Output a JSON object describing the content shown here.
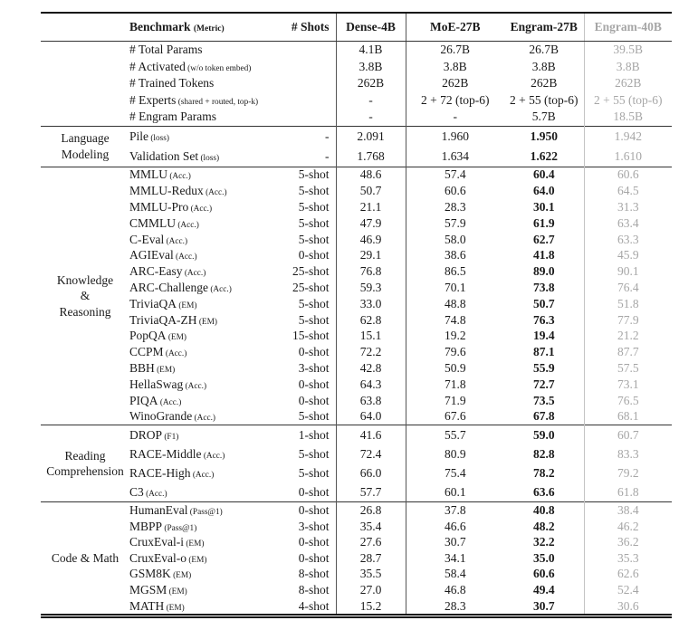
{
  "colors": {
    "text": "#1a1a1a",
    "muted_column": "#a6a6a6",
    "rule_heavy": "#111111",
    "rule_section": "#333333",
    "divider_dark": "#555555",
    "divider_gray": "#c4c4c4"
  },
  "header": {
    "benchmark_label": "Benchmark",
    "metric_note": "(Metric)",
    "shots_label": "# Shots",
    "models": [
      "Dense-4B",
      "MoE-27B",
      "Engram-27B",
      "Engram-40B"
    ]
  },
  "sections": [
    {
      "group_lines": [],
      "engram27_bold": false,
      "rows": [
        {
          "name": "# Total Params",
          "metric": "",
          "shots": "",
          "values": [
            "4.1B",
            "26.7B",
            "26.7B",
            "39.5B"
          ]
        },
        {
          "name": "# Activated",
          "metric": "(w/o token embed)",
          "shots": "",
          "values": [
            "3.8B",
            "3.8B",
            "3.8B",
            "3.8B"
          ]
        },
        {
          "name": "# Trained Tokens",
          "metric": "",
          "shots": "",
          "values": [
            "262B",
            "262B",
            "262B",
            "262B"
          ]
        },
        {
          "name": "# Experts",
          "metric": "(shared + routed, top-k)",
          "shots": "",
          "values": [
            "-",
            "2 + 72 (top-6)",
            "2 + 55 (top-6)",
            "2 + 55 (top-6)"
          ]
        },
        {
          "name": "# Engram Params",
          "metric": "",
          "shots": "",
          "values": [
            "-",
            "-",
            "5.7B",
            "18.5B"
          ]
        }
      ]
    },
    {
      "group_lines": [
        "Language",
        "Modeling"
      ],
      "engram27_bold": true,
      "rows": [
        {
          "name": "Pile",
          "metric": "(loss)",
          "shots": "-",
          "values": [
            "2.091",
            "1.960",
            "1.950",
            "1.942"
          ]
        },
        {
          "name": "Validation Set",
          "metric": "(loss)",
          "shots": "-",
          "values": [
            "1.768",
            "1.634",
            "1.622",
            "1.610"
          ]
        }
      ]
    },
    {
      "group_lines": [
        "Knowledge",
        "&",
        "Reasoning"
      ],
      "engram27_bold": true,
      "rows": [
        {
          "name": "MMLU",
          "metric": "(Acc.)",
          "shots": "5-shot",
          "values": [
            "48.6",
            "57.4",
            "60.4",
            "60.6"
          ]
        },
        {
          "name": "MMLU-Redux",
          "metric": "(Acc.)",
          "shots": "5-shot",
          "values": [
            "50.7",
            "60.6",
            "64.0",
            "64.5"
          ]
        },
        {
          "name": "MMLU-Pro",
          "metric": "(Acc.)",
          "shots": "5-shot",
          "values": [
            "21.1",
            "28.3",
            "30.1",
            "31.3"
          ]
        },
        {
          "name": "CMMLU",
          "metric": "(Acc.)",
          "shots": "5-shot",
          "values": [
            "47.9",
            "57.9",
            "61.9",
            "63.4"
          ]
        },
        {
          "name": "C-Eval",
          "metric": "(Acc.)",
          "shots": "5-shot",
          "values": [
            "46.9",
            "58.0",
            "62.7",
            "63.3"
          ]
        },
        {
          "name": "AGIEval",
          "metric": "(Acc.)",
          "shots": "0-shot",
          "values": [
            "29.1",
            "38.6",
            "41.8",
            "45.9"
          ]
        },
        {
          "name": "ARC-Easy",
          "metric": "(Acc.)",
          "shots": "25-shot",
          "values": [
            "76.8",
            "86.5",
            "89.0",
            "90.1"
          ]
        },
        {
          "name": "ARC-Challenge",
          "metric": "(Acc.)",
          "shots": "25-shot",
          "values": [
            "59.3",
            "70.1",
            "73.8",
            "76.4"
          ]
        },
        {
          "name": "TriviaQA",
          "metric": "(EM)",
          "shots": "5-shot",
          "values": [
            "33.0",
            "48.8",
            "50.7",
            "51.8"
          ]
        },
        {
          "name": "TriviaQA-ZH",
          "metric": "(EM)",
          "shots": "5-shot",
          "values": [
            "62.8",
            "74.8",
            "76.3",
            "77.9"
          ]
        },
        {
          "name": "PopQA",
          "metric": "(EM)",
          "shots": "15-shot",
          "values": [
            "15.1",
            "19.2",
            "19.4",
            "21.2"
          ]
        },
        {
          "name": "CCPM",
          "metric": "(Acc.)",
          "shots": "0-shot",
          "values": [
            "72.2",
            "79.6",
            "87.1",
            "87.7"
          ]
        },
        {
          "name": "BBH",
          "metric": "(EM)",
          "shots": "3-shot",
          "values": [
            "42.8",
            "50.9",
            "55.9",
            "57.5"
          ]
        },
        {
          "name": "HellaSwag",
          "metric": "(Acc.)",
          "shots": "0-shot",
          "values": [
            "64.3",
            "71.8",
            "72.7",
            "73.1"
          ]
        },
        {
          "name": "PIQA",
          "metric": "(Acc.)",
          "shots": "0-shot",
          "values": [
            "63.8",
            "71.9",
            "73.5",
            "76.5"
          ]
        },
        {
          "name": "WinoGrande",
          "metric": "(Acc.)",
          "shots": "5-shot",
          "values": [
            "64.0",
            "67.6",
            "67.8",
            "68.1"
          ]
        }
      ]
    },
    {
      "group_lines": [
        "Reading",
        "Comprehension"
      ],
      "engram27_bold": true,
      "rows": [
        {
          "name": "DROP",
          "metric": "(F1)",
          "shots": "1-shot",
          "values": [
            "41.6",
            "55.7",
            "59.0",
            "60.7"
          ]
        },
        {
          "name": "RACE-Middle",
          "metric": "(Acc.)",
          "shots": "5-shot",
          "values": [
            "72.4",
            "80.9",
            "82.8",
            "83.3"
          ]
        },
        {
          "name": "RACE-High",
          "metric": "(Acc.)",
          "shots": "5-shot",
          "values": [
            "66.0",
            "75.4",
            "78.2",
            "79.2"
          ]
        },
        {
          "name": "C3",
          "metric": "(Acc.)",
          "shots": "0-shot",
          "values": [
            "57.7",
            "60.1",
            "63.6",
            "61.8"
          ]
        }
      ]
    },
    {
      "group_lines": [
        "Code & Math"
      ],
      "engram27_bold": true,
      "rows": [
        {
          "name": "HumanEval",
          "metric": "(Pass@1)",
          "shots": "0-shot",
          "values": [
            "26.8",
            "37.8",
            "40.8",
            "38.4"
          ]
        },
        {
          "name": "MBPP",
          "metric": "(Pass@1)",
          "shots": "3-shot",
          "values": [
            "35.4",
            "46.6",
            "48.2",
            "46.2"
          ]
        },
        {
          "name": "CruxEval-i",
          "metric": "(EM)",
          "shots": "0-shot",
          "values": [
            "27.6",
            "30.7",
            "32.2",
            "36.2"
          ]
        },
        {
          "name": "CruxEval-o",
          "metric": "(EM)",
          "shots": "0-shot",
          "values": [
            "28.7",
            "34.1",
            "35.0",
            "35.3"
          ]
        },
        {
          "name": "GSM8K",
          "metric": "(EM)",
          "shots": "8-shot",
          "values": [
            "35.5",
            "58.4",
            "60.6",
            "62.6"
          ]
        },
        {
          "name": "MGSM",
          "metric": "(EM)",
          "shots": "8-shot",
          "values": [
            "27.0",
            "46.8",
            "49.4",
            "52.4"
          ]
        },
        {
          "name": "MATH",
          "metric": "(EM)",
          "shots": "4-shot",
          "values": [
            "15.2",
            "28.3",
            "30.7",
            "30.6"
          ]
        }
      ]
    }
  ]
}
